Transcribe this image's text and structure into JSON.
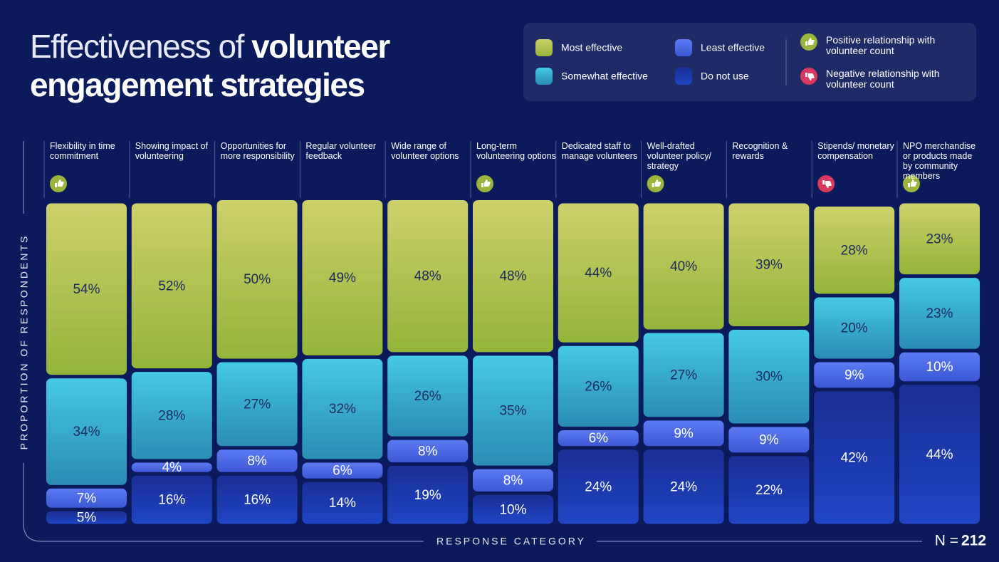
{
  "chart_data": {
    "type": "stacked_bar",
    "title_light": "Effectiveness of",
    "title_bold": "volunteer engagement strategies",
    "y_label": "PROPORTION OF RESPONDENTS",
    "x_label": "RESPONSE CATEGORY",
    "n_label": "N =",
    "n": 212,
    "ylim": [
      0,
      100
    ],
    "categories": [
      "Flexibility in time commitment",
      "Showing impact of volunteering",
      "Opportunities for more responsibility",
      "Regular volunteer feedback",
      "Wide range of volunteer options",
      "Long-term volunteering options",
      "Dedicated staff to manage volunteers",
      "Well-drafted volunteer policy/ strategy",
      "Recognition & rewards",
      "Stipends/ monetary compensation",
      "NPO merchandise or products made by community members"
    ],
    "relationship": [
      "positive",
      null,
      null,
      null,
      null,
      "positive",
      null,
      "positive",
      null,
      "negative",
      "positive"
    ],
    "relationship_legend": {
      "positive": "Positive relationship with volunteer count",
      "negative": "Negative relationship with volunteer count"
    },
    "relationship_colors": {
      "positive": "#9bb43c",
      "negative": "#d9395e"
    },
    "series": [
      {
        "name": "Most effective",
        "color": "#c2c85a",
        "values": [
          54,
          52,
          50,
          49,
          48,
          48,
          44,
          40,
          39,
          28,
          23
        ],
        "value_labels": [
          "54%",
          "52%",
          "50%",
          "49%",
          "48%",
          "48%",
          "44%",
          "40%",
          "39%",
          "28%",
          "23%"
        ]
      },
      {
        "name": "Somewhat effective",
        "color": "#3ab8d6",
        "values": [
          34,
          28,
          27,
          32,
          26,
          35,
          26,
          27,
          30,
          20,
          23
        ],
        "value_labels": [
          "34%",
          "28%",
          "27%",
          "32%",
          "26%",
          "35%",
          "26%",
          "27%",
          "30%",
          "20%",
          "23%"
        ]
      },
      {
        "name": "Least effective",
        "color": "#4f70ec",
        "values": [
          7,
          4,
          8,
          6,
          8,
          8,
          6,
          9,
          9,
          9,
          10
        ],
        "value_labels": [
          "7%",
          "4%",
          "8%",
          "6%",
          "8%",
          "8%",
          "6%",
          "9%",
          "9%",
          "9%",
          "10%"
        ]
      },
      {
        "name": "Do not use",
        "color": "#1c39ad",
        "values": [
          5,
          16,
          16,
          14,
          19,
          10,
          24,
          24,
          22,
          42,
          44
        ],
        "value_labels": [
          "5%",
          "16%",
          "16%",
          "14%",
          "19%",
          "10%",
          "24%",
          "24%",
          "22%",
          "42%",
          "44%"
        ]
      }
    ]
  }
}
